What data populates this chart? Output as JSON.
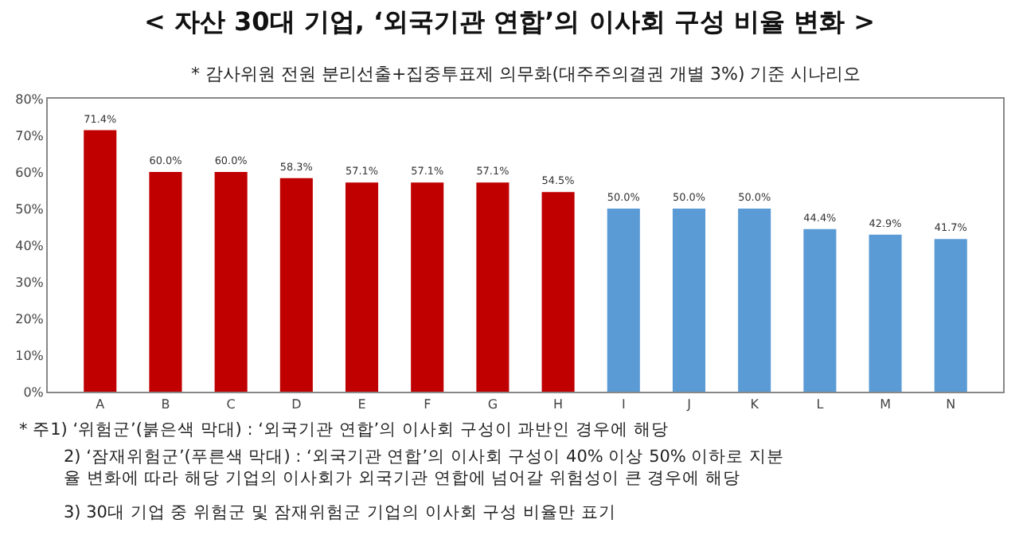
{
  "chart_data": {
    "type": "bar",
    "title": "< 자산 30대 기업, ‘외국기관 연합’의 이사회 구성 비율 변화 >",
    "subtitle": "* 감사위원 전원 분리선출+집중투표제 의무화(대주주의결권 개별 3%) 기준 시나리오",
    "categories": [
      "A",
      "B",
      "C",
      "D",
      "E",
      "F",
      "G",
      "H",
      "I",
      "J",
      "K",
      "L",
      "M",
      "N"
    ],
    "values": [
      71.4,
      60.0,
      60.0,
      58.3,
      57.1,
      57.1,
      57.1,
      54.5,
      50.0,
      50.0,
      50.0,
      44.4,
      42.9,
      41.7
    ],
    "colors": [
      "#c00000",
      "#c00000",
      "#c00000",
      "#c00000",
      "#c00000",
      "#c00000",
      "#c00000",
      "#c00000",
      "#5b9bd5",
      "#5b9bd5",
      "#5b9bd5",
      "#5b9bd5",
      "#5b9bd5",
      "#5b9bd5"
    ],
    "value_labels": [
      "71.4%",
      "60.0%",
      "60.0%",
      "58.3%",
      "57.1%",
      "57.1%",
      "57.1%",
      "54.5%",
      "50.0%",
      "50.0%",
      "50.0%",
      "44.4%",
      "42.9%",
      "41.7%"
    ],
    "ylim": [
      0,
      80
    ],
    "yticks": [
      {
        "value": 0,
        "label": "0%"
      },
      {
        "value": 10,
        "label": "10%"
      },
      {
        "value": 20,
        "label": "20%"
      },
      {
        "value": 30,
        "label": "30%"
      },
      {
        "value": 40,
        "label": "40%"
      },
      {
        "value": 50,
        "label": "50%"
      },
      {
        "value": 60,
        "label": "60%"
      },
      {
        "value": 70,
        "label": "70%"
      },
      {
        "value": 80,
        "label": "80%"
      }
    ],
    "legend": false,
    "annotations": [
      "* 주1) ‘위험군’(붉은색 막대) : ‘외국기관 연합’의 이사회 구성이 과반인 경우에 해당",
      "2) ‘잠재위험군’(푸른색 막대) : ‘외국기관 연합’의 이사회 구성이 40% 이상 50% 이하로 지분\n율 변화에 따라 해당 기업의 이사회가 외국기관 연합에 넘어갈 위험성이 큰 경우에 해당",
      "3) 30대 기업 중 위험군 및 잠재위험군 기업의 이사회 구성 비율만 표기"
    ]
  }
}
